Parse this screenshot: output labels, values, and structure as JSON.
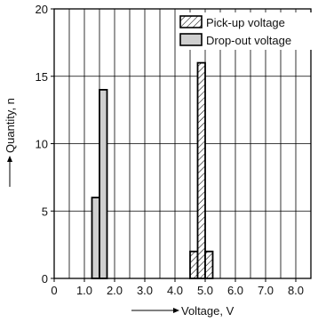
{
  "chart_data": {
    "type": "bar",
    "title": "",
    "xlabel": "Voltage, V",
    "ylabel": "Quantity, n",
    "xlim": [
      0,
      8.5
    ],
    "ylim": [
      0,
      20
    ],
    "x_ticks": [
      0,
      1.0,
      2.0,
      3.0,
      4.0,
      5.0,
      6.0,
      7.0,
      8.0
    ],
    "x_tick_labels": [
      "0",
      "1.0",
      "2.0",
      "3.0",
      "4.0",
      "5.0",
      "6.0",
      "7.0",
      "8.0"
    ],
    "y_ticks": [
      0,
      5,
      10,
      15,
      20
    ],
    "y_tick_labels": [
      "0",
      "5",
      "10",
      "15",
      "20"
    ],
    "grid": {
      "vertical_step": 0.5,
      "horizontal": [
        5,
        10,
        15
      ]
    },
    "legend_position": "top-right",
    "series": [
      {
        "name": "Pick-up voltage",
        "fill": "hatch",
        "bars": [
          {
            "x0": 4.5,
            "x1": 4.75,
            "value": 2
          },
          {
            "x0": 4.75,
            "x1": 5.0,
            "value": 16
          },
          {
            "x0": 5.0,
            "x1": 5.25,
            "value": 2
          }
        ]
      },
      {
        "name": "Drop-out voltage",
        "fill": "#cfcfcf",
        "bars": [
          {
            "x0": 1.25,
            "x1": 1.5,
            "value": 6
          },
          {
            "x0": 1.5,
            "x1": 1.75,
            "value": 14
          }
        ]
      }
    ]
  }
}
